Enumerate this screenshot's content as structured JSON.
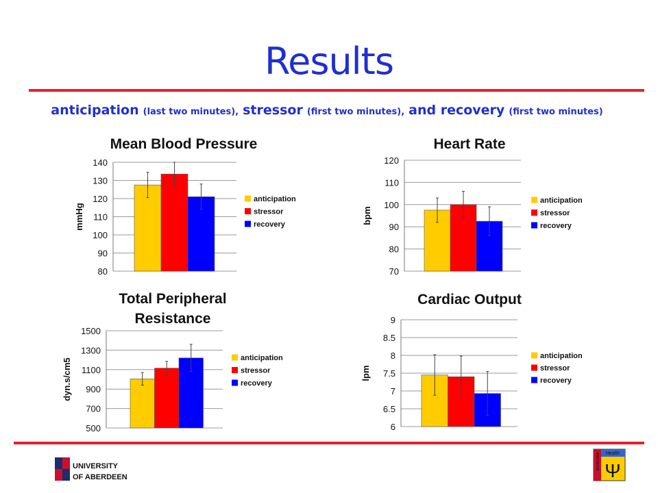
{
  "title": "Results",
  "subtitle": [
    "anticipation",
    "(last two minutes),",
    "stressor",
    "(first two minutes),",
    "and recovery",
    "(first two minutes)"
  ],
  "logos": {
    "university": [
      "UNIVERSITY",
      "OF ABERDEEN"
    ],
    "health": "Health",
    "aberdeen": "ABERDEEN",
    "psi": "Ψ"
  },
  "chart_data": [
    {
      "type": "bar",
      "title": "Mean Blood Pressure",
      "y_label": "mmHg",
      "ylim": [
        80,
        140
      ],
      "yticks": [
        80,
        90,
        100,
        110,
        120,
        130,
        140
      ],
      "grid": true,
      "series": [
        {
          "name": "anticipation",
          "color": "#ffcc00",
          "values": [
            127.5
          ],
          "errors": [
            7
          ]
        },
        {
          "name": "stressor",
          "color": "#ff0000",
          "values": [
            133.5
          ],
          "errors": [
            6.5
          ]
        },
        {
          "name": "recovery",
          "color": "#0000ff",
          "values": [
            121
          ],
          "errors": [
            7
          ]
        }
      ]
    },
    {
      "type": "bar",
      "title": "Heart Rate",
      "y_label": "bpm",
      "ylim": [
        70,
        120
      ],
      "yticks": [
        70,
        80,
        90,
        100,
        110,
        120
      ],
      "grid": true,
      "series": [
        {
          "name": "anticipation",
          "color": "#ffcc00",
          "values": [
            97.5
          ],
          "errors": [
            5.5
          ]
        },
        {
          "name": "stressor",
          "color": "#ff0000",
          "values": [
            100
          ],
          "errors": [
            6
          ]
        },
        {
          "name": "recovery",
          "color": "#0000ff",
          "values": [
            92.5
          ],
          "errors": [
            6.5
          ]
        }
      ]
    },
    {
      "type": "bar",
      "title": "Total Peripheral Resistance",
      "y_label": "dyn.s/cm5",
      "ylim": [
        500,
        1500
      ],
      "yticks": [
        500,
        700,
        900,
        1100,
        1300,
        1500
      ],
      "grid": true,
      "series": [
        {
          "name": "anticipation",
          "color": "#ffcc00",
          "values": [
            1005
          ],
          "errors": [
            65
          ]
        },
        {
          "name": "stressor",
          "color": "#ff0000",
          "values": [
            1115
          ],
          "errors": [
            70
          ]
        },
        {
          "name": "recovery",
          "color": "#0000ff",
          "values": [
            1220
          ],
          "errors": [
            140
          ]
        }
      ]
    },
    {
      "type": "bar",
      "title": "Cardiac Output",
      "y_label": "lpm",
      "ylim": [
        6,
        9
      ],
      "yticks": [
        6,
        6.5,
        7,
        7.5,
        8,
        8.5,
        9
      ],
      "grid": true,
      "series": [
        {
          "name": "anticipation",
          "color": "#ffcc00",
          "values": [
            7.45
          ],
          "errors": [
            0.57
          ]
        },
        {
          "name": "stressor",
          "color": "#ff0000",
          "values": [
            7.4
          ],
          "errors": [
            0.58
          ]
        },
        {
          "name": "recovery",
          "color": "#0000ff",
          "values": [
            6.93
          ],
          "errors": [
            0.62
          ]
        }
      ]
    }
  ]
}
